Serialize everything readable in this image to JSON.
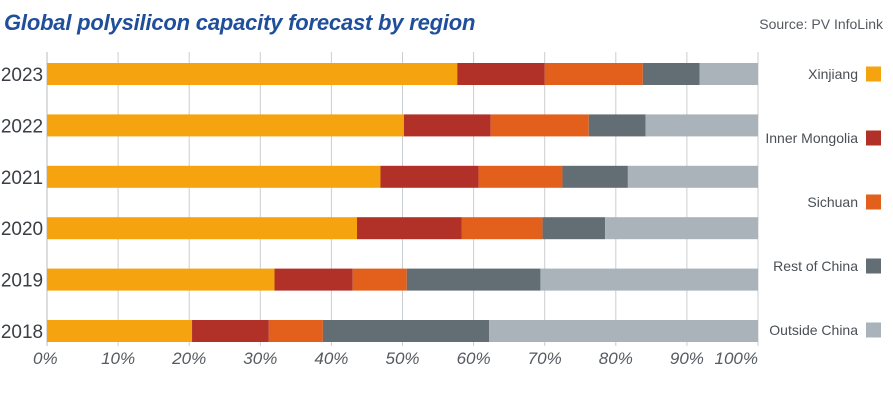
{
  "header": {
    "title": "Global polysilicon capacity forecast by region",
    "source": "Source: PV InfoLink"
  },
  "chart_data": {
    "type": "bar",
    "orientation": "horizontal",
    "stacked": true,
    "title": "Global polysilicon capacity forecast by region",
    "categories": [
      "2023",
      "2022",
      "2021",
      "2020",
      "2019",
      "2018"
    ],
    "series": [
      {
        "name": "Xinjiang",
        "color": "#f5a30f",
        "values": [
          57.7,
          50.2,
          46.9,
          43.6,
          32.0,
          20.4
        ]
      },
      {
        "name": "Inner Mongolia",
        "color": "#b13128",
        "values": [
          12.3,
          12.2,
          13.8,
          14.7,
          11.0,
          10.8
        ]
      },
      {
        "name": "Sichuan",
        "color": "#e2601c",
        "values": [
          13.8,
          13.8,
          11.8,
          11.4,
          7.6,
          7.6
        ]
      },
      {
        "name": "Rest of China",
        "color": "#636e74",
        "values": [
          8.0,
          8.0,
          9.2,
          8.8,
          18.8,
          23.4
        ]
      },
      {
        "name": "Outside China",
        "color": "#a9b3b9",
        "values": [
          8.2,
          15.8,
          18.3,
          21.5,
          30.6,
          37.8
        ]
      }
    ],
    "x_ticks": [
      "0%",
      "10%",
      "20%",
      "30%",
      "40%",
      "50%",
      "60%",
      "70%",
      "80%",
      "90%",
      "100%"
    ],
    "xlim": [
      0,
      100
    ],
    "xlabel": "",
    "ylabel": "",
    "grid": "vertical",
    "legend": "right"
  }
}
